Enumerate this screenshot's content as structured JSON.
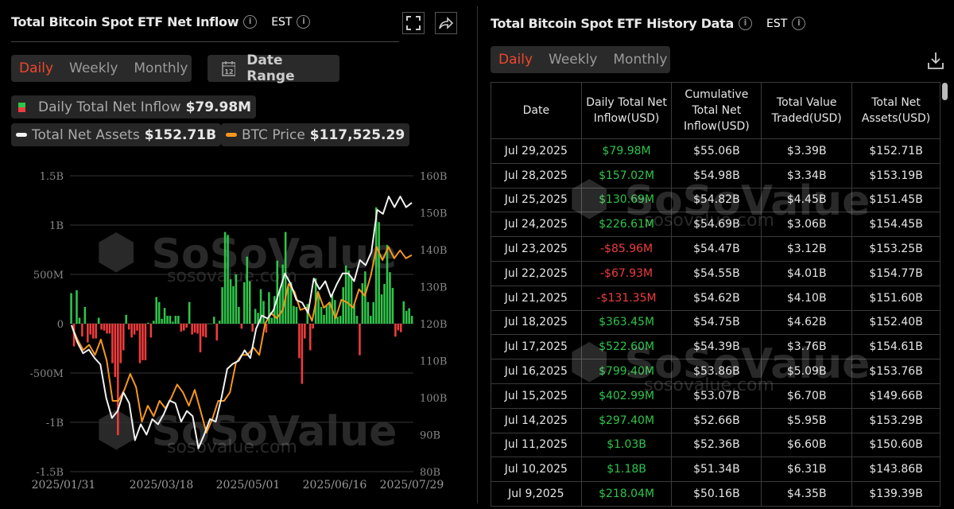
{
  "left": {
    "title": "Total Bitcoin Spot ETF Net Inflow",
    "timezone": "EST",
    "tabs": [
      {
        "label": "Daily",
        "active": true
      },
      {
        "label": "Weekly"
      },
      {
        "label": "Monthly"
      }
    ],
    "date_range_label": "Date Range",
    "calendar_day": "12",
    "legend": {
      "inflow": {
        "label": "Daily Total Net Inflow",
        "value": "$79.98M"
      },
      "assets": {
        "label": "Total Net Assets",
        "value": "$152.71B"
      },
      "price": {
        "label": "BTC Price",
        "value": "$117,525.29"
      }
    },
    "watermark": {
      "brand": "SoSoValue",
      "site": "sosovalue.com"
    }
  },
  "colors": {
    "positive": "#2fc44a",
    "negative": "#f03c3c",
    "assets_line": "#f2f2f2",
    "price_line": "#f5961e",
    "accent": "#f0462c"
  },
  "chart_data": {
    "type": "bar+line",
    "x_range": [
      "2025-01-31",
      "2025-07-29"
    ],
    "x_ticks": [
      "2025/01/31",
      "2025/03/18",
      "2025/05/01",
      "2025/06/16",
      "2025/07/29"
    ],
    "y_left": {
      "ticks": [
        "1.5B",
        "1B",
        "500M",
        "0",
        "-500M",
        "-1B",
        "-1.5B"
      ],
      "range_musd": [
        -1500,
        1500
      ]
    },
    "y_right": {
      "ticks": [
        "160B",
        "150B",
        "140B",
        "130B",
        "120B",
        "110B",
        "100B",
        "90B",
        "80B"
      ],
      "range_busd": [
        80,
        160
      ]
    },
    "grid": true,
    "series": [
      {
        "name": "Daily Total Net Inflow",
        "type": "bar",
        "unit": "M USD",
        "values": [
          310,
          -230,
          340,
          60,
          -130,
          170,
          -190,
          -110,
          -150,
          -150,
          60,
          -60,
          -70,
          -100,
          -100,
          -400,
          -540,
          -1130,
          -400,
          -270,
          90,
          -60,
          -140,
          -110,
          -70,
          -400,
          -370,
          -370,
          10,
          -140,
          30,
          270,
          220,
          50,
          160,
          80,
          80,
          20,
          80,
          80,
          -80,
          -70,
          -40,
          220,
          -110,
          -90,
          -100,
          -290,
          -130,
          -140,
          0,
          0,
          70,
          -170,
          30,
          370,
          930,
          900,
          450,
          380,
          500,
          170,
          -50,
          420,
          680,
          430,
          -80,
          150,
          110,
          350,
          230,
          -90,
          320,
          60,
          280,
          640,
          350,
          600,
          930,
          370,
          420,
          180,
          170,
          -350,
          -610,
          -150,
          200,
          -270,
          -50,
          460,
          300,
          170,
          90,
          180,
          220,
          300,
          240,
          70,
          80,
          370,
          590,
          540,
          480,
          200,
          80,
          -320,
          410,
          530,
          220,
          80,
          218.04,
          1180,
          1030,
          297.4,
          402.99,
          799.4,
          522.6,
          363.45,
          -131.35,
          -67.93,
          -85.96,
          226.61,
          130.69,
          157.02,
          79.98
        ]
      },
      {
        "name": "Total Net Assets",
        "type": "line",
        "unit": "B USD",
        "values": [
          119.6,
          115,
          112,
          113,
          110.7,
          109,
          100,
          94.5,
          96.4,
          101.4,
          98.5,
          88.5,
          92.8,
          90,
          94.2,
          92.8,
          95.6,
          99.2,
          98.5,
          93.5,
          96.4,
          95,
          86.3,
          90,
          94.2,
          93.5,
          100,
          107.8,
          109.2,
          110,
          112.8,
          110.7,
          118.6,
          122.2,
          121.4,
          123.6,
          128.6,
          133.6,
          130.7,
          126.4,
          125.7,
          122.9,
          132.2,
          129.3,
          131.5,
          127.2,
          130.7,
          133.6,
          133.6,
          131.5,
          137.2,
          135.8,
          139.4,
          150.8,
          149.7,
          154.4,
          151.5,
          154.4,
          151.5,
          152.71
        ]
      },
      {
        "name": "BTC Price",
        "type": "line",
        "unit": "USD",
        "values": [
          101600,
          98400,
          96000,
          97200,
          94900,
          98400,
          93600,
          84500,
          84500,
          87000,
          90600,
          87600,
          79800,
          83400,
          81000,
          84500,
          82800,
          85200,
          88200,
          86400,
          83400,
          87000,
          82200,
          77300,
          80400,
          84500,
          84500,
          86400,
          93000,
          94900,
          94900,
          96600,
          94900,
          102000,
          104400,
          103200,
          105100,
          111000,
          109200,
          105100,
          105600,
          102600,
          109200,
          105600,
          106800,
          103200,
          107400,
          106800,
          105600,
          109800,
          108300,
          112800,
          119400,
          116400,
          119400,
          116800,
          118600,
          116800,
          117525.29
        ]
      }
    ]
  },
  "right": {
    "title": "Total Bitcoin Spot ETF History Data",
    "timezone": "EST",
    "tabs": [
      {
        "label": "Daily",
        "active": true
      },
      {
        "label": "Weekly"
      },
      {
        "label": "Monthly"
      }
    ],
    "columns": [
      "Date",
      "Daily Total Net Inflow(USD)",
      "Cumulative Total Net Inflow(USD)",
      "Total Value Traded(USD)",
      "Total Net Assets(USD)"
    ],
    "rows": [
      [
        "Jul 29,2025",
        "$79.98M",
        "$55.06B",
        "$3.39B",
        "$152.71B"
      ],
      [
        "Jul 28,2025",
        "$157.02M",
        "$54.98B",
        "$3.34B",
        "$153.19B"
      ],
      [
        "Jul 25,2025",
        "$130.69M",
        "$54.82B",
        "$4.45B",
        "$151.45B"
      ],
      [
        "Jul 24,2025",
        "$226.61M",
        "$54.69B",
        "$3.06B",
        "$154.45B"
      ],
      [
        "Jul 23,2025",
        "-$85.96M",
        "$54.47B",
        "$3.12B",
        "$153.25B"
      ],
      [
        "Jul 22,2025",
        "-$67.93M",
        "$54.55B",
        "$4.01B",
        "$154.77B"
      ],
      [
        "Jul 21,2025",
        "-$131.35M",
        "$54.62B",
        "$4.10B",
        "$151.60B"
      ],
      [
        "Jul 18,2025",
        "$363.45M",
        "$54.75B",
        "$4.62B",
        "$152.40B"
      ],
      [
        "Jul 17,2025",
        "$522.60M",
        "$54.39B",
        "$3.76B",
        "$154.61B"
      ],
      [
        "Jul 16,2025",
        "$799.40M",
        "$53.86B",
        "$5.09B",
        "$153.76B"
      ],
      [
        "Jul 15,2025",
        "$402.99M",
        "$53.07B",
        "$6.70B",
        "$149.66B"
      ],
      [
        "Jul 14,2025",
        "$297.40M",
        "$52.66B",
        "$5.95B",
        "$153.29B"
      ],
      [
        "Jul 11,2025",
        "$1.03B",
        "$52.36B",
        "$6.60B",
        "$150.60B"
      ],
      [
        "Jul 10,2025",
        "$1.18B",
        "$51.34B",
        "$6.31B",
        "$143.86B"
      ],
      [
        "Jul 9,2025",
        "$218.04M",
        "$50.16B",
        "$4.35B",
        "$139.39B"
      ]
    ]
  }
}
